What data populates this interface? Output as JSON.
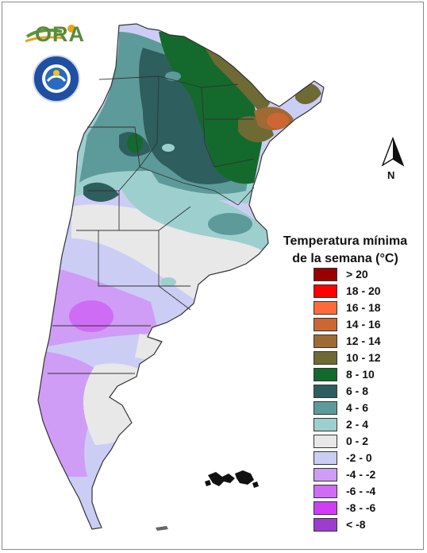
{
  "logo": {
    "text": "ORA"
  },
  "seal": {
    "text": "SERVICIO METEOROLOGICO NACIONAL · ARGENTINA",
    "inner": "SMN"
  },
  "north_arrow": {
    "label": "N"
  },
  "legend": {
    "title_line1": "Temperatura mínima",
    "title_line2": "de la semana (°C)",
    "items": [
      {
        "label": "> 20",
        "color": "#990000"
      },
      {
        "label": "18 - 20",
        "color": "#ff0000"
      },
      {
        "label": "16 - 18",
        "color": "#ff6a3c"
      },
      {
        "label": "14 - 16",
        "color": "#cc6633"
      },
      {
        "label": "12 - 14",
        "color": "#a06a33"
      },
      {
        "label": "10 - 12",
        "color": "#6e6a33"
      },
      {
        "label": "8 - 10",
        "color": "#146a2c"
      },
      {
        "label": "6 - 8",
        "color": "#2e5e5e"
      },
      {
        "label": "4 - 6",
        "color": "#5d9a9a"
      },
      {
        "label": "2 - 4",
        "color": "#9ecfcf"
      },
      {
        "label": "0 - 2",
        "color": "#e8e8e8"
      },
      {
        "label": "-2 - 0",
        "color": "#cccdf5"
      },
      {
        "label": "-4 - -2",
        "color": "#cf9df5"
      },
      {
        "label": "-6 - -4",
        "color": "#cf6cf5"
      },
      {
        "label": "-8 - -6",
        "color": "#cf3df5"
      },
      {
        "label": "< -8",
        "color": "#9d3dcf"
      }
    ]
  }
}
